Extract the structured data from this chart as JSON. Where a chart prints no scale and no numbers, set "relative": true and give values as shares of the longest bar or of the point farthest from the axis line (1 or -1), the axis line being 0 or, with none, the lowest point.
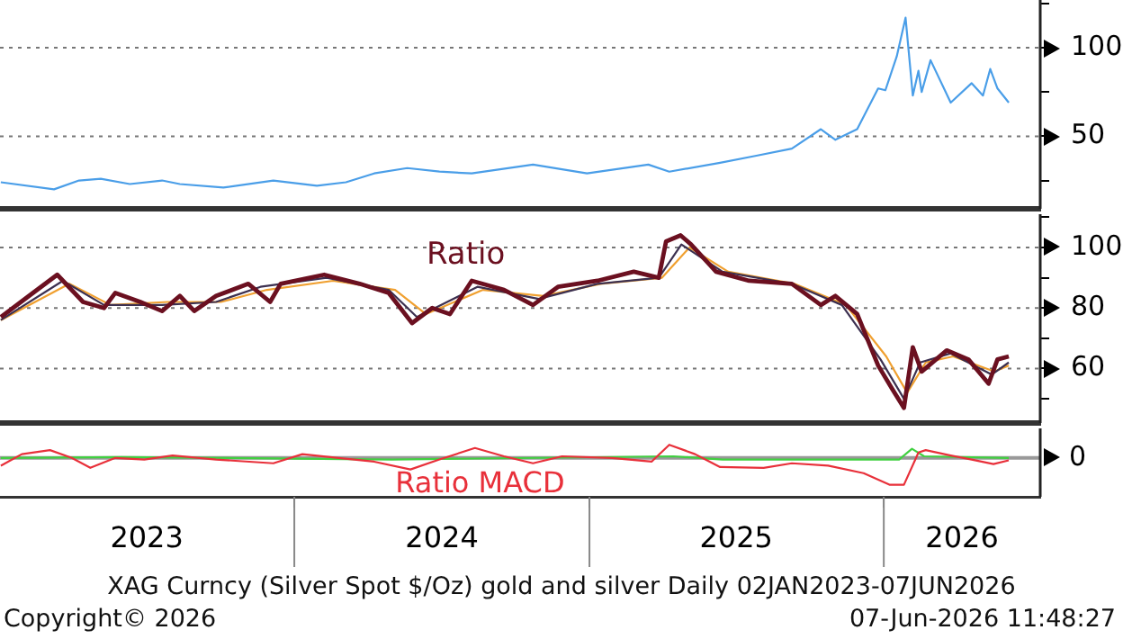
{
  "chart_data": [
    {
      "type": "line",
      "xlim": [
        "2023-01-01",
        "2026-07-14"
      ],
      "ylim": [
        9,
        127
      ],
      "yticks": [
        {
          "value": 25,
          "label": null
        },
        50,
        {
          "value": 75,
          "label": null
        },
        100,
        {
          "value": 125,
          "label": null
        }
      ],
      "grid": "y",
      "legend": false,
      "tick_labels": "y",
      "series": [
        {
          "color": "#4a9ee8",
          "x": [
            "2023-01-02",
            "2023-03-09",
            "2023-04-09",
            "2023-05-06",
            "2023-06-11",
            "2023-07-21",
            "2023-08-12",
            "2023-10-05",
            "2023-12-06",
            "2024-01-29",
            "2024-03-05",
            "2024-04-09",
            "2024-05-20",
            "2024-06-29",
            "2024-08-08",
            "2024-10-23",
            "2024-12-29",
            "2025-03-15",
            "2025-04-10",
            "2025-06-12",
            "2025-07-27",
            "2025-09-09",
            "2025-10-15",
            "2025-11-02",
            "2025-11-29",
            "2025-12-25",
            "2026-01-03",
            "2026-01-17",
            "2026-01-28",
            "2026-02-06",
            "2026-02-13",
            "2026-02-17",
            "2026-02-28",
            "2026-03-25",
            "2026-04-20",
            "2026-05-04",
            "2026-05-13",
            "2026-05-22",
            "2026-06-05"
          ],
          "values": [
            24,
            20,
            25,
            26,
            23,
            25,
            23,
            21,
            25,
            22,
            24,
            29,
            32,
            30,
            29,
            34,
            29,
            34,
            30,
            35,
            39,
            43,
            54,
            48,
            54,
            77,
            76,
            95,
            117,
            73,
            87,
            75,
            93,
            69,
            80,
            73,
            88,
            77,
            69
          ]
        }
      ]
    },
    {
      "type": "line",
      "xlim": [
        "2023-01-01",
        "2026-07-14"
      ],
      "ylim": [
        42,
        111
      ],
      "yticks": [
        {
          "value": 50,
          "label": null
        },
        60,
        {
          "value": 70,
          "label": null
        },
        80,
        {
          "value": 90,
          "label": null
        },
        100,
        {
          "value": 110,
          "label": null
        }
      ],
      "grid": "y",
      "legend": false,
      "tick_labels": "y",
      "series": [
        {
          "name": "Ratio",
          "color": "#6b1020",
          "x": [
            "2023-01-02",
            "2023-02-06",
            "2023-03-13",
            "2023-04-14",
            "2023-05-10",
            "2023-05-24",
            "2023-06-24",
            "2023-07-21",
            "2023-08-12",
            "2023-08-30",
            "2023-09-26",
            "2023-11-05",
            "2023-12-02",
            "2023-12-15",
            "2024-02-07",
            "2024-03-22",
            "2024-04-27",
            "2024-05-26",
            "2024-06-20",
            "2024-07-12",
            "2024-08-08",
            "2024-09-17",
            "2024-10-23",
            "2024-11-23",
            "2025-01-11",
            "2025-02-25",
            "2025-03-28",
            "2025-04-06",
            "2025-04-24",
            "2025-05-07",
            "2025-06-07",
            "2025-07-18",
            "2025-09-09",
            "2025-10-15",
            "2025-11-02",
            "2025-11-29",
            "2025-12-25",
            "2026-01-12",
            "2026-01-26",
            "2026-02-06",
            "2026-02-17",
            "2026-03-20",
            "2026-04-16",
            "2026-05-11",
            "2026-05-22",
            "2026-06-05"
          ],
          "values": [
            77,
            84,
            91,
            82,
            80,
            85,
            82,
            79,
            84,
            79,
            84,
            88,
            82,
            88,
            91,
            88,
            85,
            75,
            80,
            78,
            89,
            86,
            81,
            87,
            89,
            92,
            90,
            102,
            104,
            101,
            92,
            89,
            88,
            81,
            84,
            78,
            61,
            53,
            47,
            67,
            59,
            66,
            63,
            55,
            63,
            64
          ]
        },
        {
          "color": "#3c3050",
          "x": [
            "2023-01-02",
            "2023-03-20",
            "2023-05-10",
            "2023-07-21",
            "2023-09-26",
            "2023-11-20",
            "2024-02-10",
            "2024-04-27",
            "2024-06-01",
            "2024-08-15",
            "2024-10-30",
            "2025-01-11",
            "2025-03-28",
            "2025-04-25",
            "2025-06-15",
            "2025-09-09",
            "2025-11-10",
            "2025-12-28",
            "2026-01-26",
            "2026-02-15",
            "2026-03-25",
            "2026-05-15",
            "2026-06-05"
          ],
          "values": [
            76,
            89,
            81,
            81,
            82,
            87,
            90,
            86,
            77,
            87,
            83,
            88,
            90,
            101,
            92,
            88,
            81,
            63,
            50,
            62,
            65,
            58,
            62
          ]
        },
        {
          "color": "#f0a030",
          "x": [
            "2023-01-02",
            "2023-03-28",
            "2023-05-18",
            "2023-07-28",
            "2023-10-02",
            "2023-11-28",
            "2024-02-18",
            "2024-05-05",
            "2024-06-12",
            "2024-08-22",
            "2024-11-05",
            "2025-01-15",
            "2025-04-01",
            "2025-05-05",
            "2025-06-22",
            "2025-09-12",
            "2025-11-15",
            "2026-01-04",
            "2026-01-30",
            "2026-02-22",
            "2026-03-28",
            "2026-05-18",
            "2026-06-05"
          ],
          "values": [
            76,
            88,
            81,
            82,
            82,
            86,
            89,
            86,
            78,
            86,
            84,
            88,
            90,
            100,
            92,
            88,
            81,
            64,
            52,
            62,
            64,
            59,
            61
          ]
        }
      ]
    },
    {
      "type": "line",
      "relative": true,
      "xlim": [
        "2023-01-01",
        "2026-07-14"
      ],
      "xticks": [
        {
          "value": "2023-07-02",
          "label": "2023"
        },
        {
          "value": "2024-01-01",
          "label": null
        },
        {
          "value": "2024-07-02",
          "label": "2024"
        },
        {
          "value": "2025-01-01",
          "label": null
        },
        {
          "value": "2025-07-02",
          "label": "2025"
        },
        {
          "value": "2026-01-01",
          "label": null
        },
        {
          "value": "2026-04-08",
          "label": "2026"
        }
      ],
      "legend": false,
      "ref_lines": [
        {
          "axis": "y",
          "value": 0,
          "label": "0",
          "color": "#999999"
        }
      ],
      "series": [
        {
          "name": "Ratio MACD",
          "color": "#e8303a",
          "x": [
            "2023-01-02",
            "2023-01-28",
            "2023-03-04",
            "2023-03-31",
            "2023-04-23",
            "2023-05-24",
            "2023-06-29",
            "2023-08-03",
            "2023-09-26",
            "2023-12-06",
            "2024-01-11",
            "2024-02-25",
            "2024-04-09",
            "2024-05-24",
            "2024-06-29",
            "2024-08-12",
            "2024-09-17",
            "2024-10-23",
            "2024-11-28",
            "2025-01-29",
            "2025-03-19",
            "2025-04-10",
            "2025-05-12",
            "2025-06-12",
            "2025-08-05",
            "2025-09-09",
            "2025-10-24",
            "2025-12-07",
            "2026-01-08",
            "2026-01-26",
            "2026-02-13",
            "2026-02-22",
            "2026-03-25",
            "2026-04-20",
            "2026-05-17",
            "2026-06-05"
          ],
          "values": [
            -0.29,
            0.14,
            0.29,
            0,
            -0.37,
            0,
            -0.06,
            0.09,
            -0.06,
            -0.2,
            0.14,
            0,
            -0.14,
            -0.43,
            -0.06,
            0.37,
            0.06,
            -0.2,
            0.06,
            0,
            -0.14,
            0.49,
            0.14,
            -0.34,
            -0.37,
            -0.2,
            -0.29,
            -0.57,
            -1,
            -1,
            0.2,
            0.29,
            0.09,
            -0.06,
            -0.23,
            -0.09
          ]
        },
        {
          "color": "#40d040",
          "x": [
            "2023-01-02",
            "2023-06-01",
            "2024-05-01",
            "2025-04-15",
            "2025-06-15",
            "2026-01-20",
            "2026-02-05",
            "2026-02-20",
            "2026-06-05"
          ],
          "values": [
            0,
            0.03,
            -0.06,
            0.06,
            -0.06,
            -0.06,
            0.34,
            0.06,
            0
          ]
        }
      ],
      "annotations": [
        "XAG Curncy (Silver Spot  $/Oz) gold and silver Daily 02JAN2023-07JUN2026",
        "Copyright© 2026",
        "07-Jun-2026 11:48:27"
      ]
    }
  ]
}
